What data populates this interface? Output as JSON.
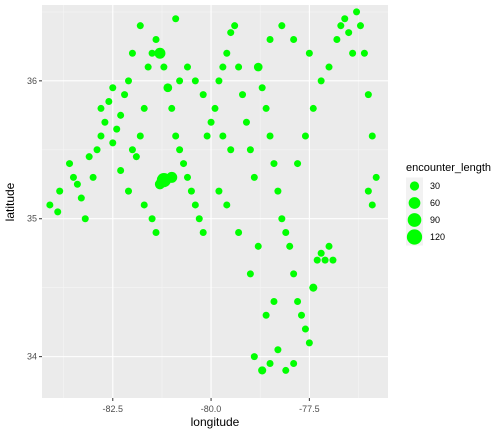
{
  "chart_data": {
    "type": "scatter",
    "title": "",
    "xlabel": "longitude",
    "ylabel": "latitude",
    "xlim": [
      -84.3,
      -75.5
    ],
    "ylim": [
      33.7,
      36.55
    ],
    "x_ticks": [
      -82.5,
      -80.0,
      -77.5
    ],
    "x_tick_labels": [
      "-82.5",
      "-80.0",
      "-77.5"
    ],
    "y_ticks": [
      34,
      35,
      36
    ],
    "y_tick_labels": [
      "34",
      "35",
      "36"
    ],
    "grid": true,
    "point_color": "#00FF00",
    "panel_background": "#EBEBEB",
    "legend": {
      "title": "encounter_length",
      "placement": "right",
      "entries": [
        {
          "label": "30",
          "value": 30
        },
        {
          "label": "60",
          "value": 60
        },
        {
          "label": "90",
          "value": 90
        },
        {
          "label": "120",
          "value": 120
        }
      ]
    },
    "size_variable": "encounter_length",
    "points": [
      [
        -84.1,
        35.1,
        12
      ],
      [
        -83.9,
        35.05,
        12
      ],
      [
        -83.85,
        35.2,
        12
      ],
      [
        -83.6,
        35.4,
        12
      ],
      [
        -83.5,
        35.3,
        12
      ],
      [
        -83.4,
        35.25,
        12
      ],
      [
        -83.3,
        35.15,
        12
      ],
      [
        -83.2,
        35.0,
        12
      ],
      [
        -83.0,
        35.3,
        12
      ],
      [
        -82.9,
        35.5,
        12
      ],
      [
        -82.8,
        35.6,
        12
      ],
      [
        -82.7,
        35.7,
        12
      ],
      [
        -82.6,
        35.85,
        12
      ],
      [
        -82.5,
        35.55,
        12
      ],
      [
        -82.4,
        35.65,
        12
      ],
      [
        -82.3,
        35.75,
        12
      ],
      [
        -82.2,
        35.9,
        12
      ],
      [
        -82.1,
        36.0,
        12
      ],
      [
        -82.0,
        35.5,
        12
      ],
      [
        -81.9,
        35.45,
        12
      ],
      [
        -81.8,
        35.6,
        12
      ],
      [
        -81.7,
        35.8,
        12
      ],
      [
        -81.6,
        36.1,
        12
      ],
      [
        -81.5,
        36.2,
        12
      ],
      [
        -81.4,
        36.3,
        12
      ],
      [
        -81.3,
        36.2,
        50
      ],
      [
        -81.2,
        36.1,
        12
      ],
      [
        -81.1,
        35.95,
        25
      ],
      [
        -81.0,
        35.8,
        12
      ],
      [
        -80.9,
        35.6,
        12
      ],
      [
        -80.8,
        35.5,
        12
      ],
      [
        -80.7,
        35.4,
        12
      ],
      [
        -80.6,
        35.3,
        12
      ],
      [
        -80.5,
        35.2,
        12
      ],
      [
        -80.4,
        35.1,
        12
      ],
      [
        -80.3,
        35.0,
        12
      ],
      [
        -80.2,
        34.9,
        12
      ],
      [
        -80.1,
        35.6,
        12
      ],
      [
        -80.0,
        35.7,
        12
      ],
      [
        -79.9,
        35.8,
        12
      ],
      [
        -79.8,
        36.0,
        12
      ],
      [
        -79.7,
        36.1,
        12
      ],
      [
        -79.6,
        36.2,
        12
      ],
      [
        -79.5,
        36.35,
        12
      ],
      [
        -79.4,
        36.4,
        12
      ],
      [
        -79.3,
        36.1,
        12
      ],
      [
        -79.2,
        35.9,
        12
      ],
      [
        -79.1,
        35.7,
        12
      ],
      [
        -79.0,
        35.5,
        12
      ],
      [
        -78.9,
        35.3,
        12
      ],
      [
        -78.8,
        36.1,
        25
      ],
      [
        -78.7,
        35.95,
        12
      ],
      [
        -78.6,
        35.8,
        12
      ],
      [
        -78.5,
        35.6,
        12
      ],
      [
        -78.4,
        35.4,
        12
      ],
      [
        -78.3,
        35.2,
        12
      ],
      [
        -78.2,
        35.0,
        12
      ],
      [
        -78.1,
        34.9,
        12
      ],
      [
        -78.0,
        34.8,
        12
      ],
      [
        -77.9,
        34.6,
        12
      ],
      [
        -77.8,
        34.4,
        12
      ],
      [
        -77.7,
        34.3,
        12
      ],
      [
        -77.6,
        34.2,
        12
      ],
      [
        -77.5,
        34.1,
        12
      ],
      [
        -77.4,
        34.5,
        20
      ],
      [
        -77.3,
        34.7,
        12
      ],
      [
        -77.2,
        34.75,
        12
      ],
      [
        -77.1,
        34.7,
        12
      ],
      [
        -77.0,
        34.8,
        12
      ],
      [
        -76.9,
        34.7,
        12
      ],
      [
        -76.8,
        36.3,
        12
      ],
      [
        -76.7,
        36.4,
        12
      ],
      [
        -76.6,
        36.45,
        12
      ],
      [
        -76.5,
        36.35,
        12
      ],
      [
        -76.4,
        36.2,
        12
      ],
      [
        -76.3,
        36.5,
        12
      ],
      [
        -76.2,
        36.4,
        12
      ],
      [
        -76.1,
        36.2,
        12
      ],
      [
        -76.0,
        35.9,
        12
      ],
      [
        -75.9,
        35.6,
        12
      ],
      [
        -75.8,
        35.3,
        12
      ],
      [
        -75.9,
        35.1,
        12
      ],
      [
        -76.0,
        35.2,
        12
      ],
      [
        -81.2,
        35.28,
        100
      ],
      [
        -81.0,
        35.3,
        50
      ],
      [
        -81.3,
        35.25,
        40
      ],
      [
        -82.3,
        35.35,
        12
      ],
      [
        -82.1,
        35.2,
        12
      ],
      [
        -81.7,
        35.1,
        12
      ],
      [
        -81.5,
        35.0,
        12
      ],
      [
        -81.4,
        34.9,
        12
      ],
      [
        -80.8,
        36.0,
        12
      ],
      [
        -80.6,
        36.1,
        12
      ],
      [
        -80.4,
        36.0,
        12
      ],
      [
        -80.2,
        35.9,
        12
      ],
      [
        -78.9,
        34.0,
        12
      ],
      [
        -78.7,
        33.9,
        20
      ],
      [
        -78.5,
        33.95,
        12
      ],
      [
        -78.3,
        34.05,
        12
      ],
      [
        -78.1,
        33.9,
        12
      ],
      [
        -77.9,
        33.95,
        12
      ],
      [
        -78.6,
        34.3,
        12
      ],
      [
        -78.4,
        34.4,
        12
      ],
      [
        -78.8,
        34.8,
        12
      ],
      [
        -79.0,
        34.6,
        12
      ],
      [
        -79.3,
        34.9,
        12
      ],
      [
        -79.6,
        35.1,
        12
      ],
      [
        -79.8,
        35.2,
        12
      ],
      [
        -79.5,
        35.5,
        12
      ],
      [
        -79.7,
        35.6,
        12
      ],
      [
        -77.8,
        35.4,
        12
      ],
      [
        -77.6,
        35.6,
        12
      ],
      [
        -77.4,
        35.8,
        12
      ],
      [
        -77.2,
        36.0,
        12
      ],
      [
        -77.0,
        36.1,
        12
      ],
      [
        -77.5,
        36.2,
        12
      ],
      [
        -77.9,
        36.3,
        12
      ],
      [
        -78.2,
        36.4,
        12
      ],
      [
        -78.5,
        36.3,
        12
      ],
      [
        -80.9,
        36.45,
        12
      ],
      [
        -81.8,
        36.4,
        12
      ],
      [
        -82.0,
        36.2,
        12
      ],
      [
        -82.5,
        35.95,
        12
      ],
      [
        -82.8,
        35.8,
        12
      ],
      [
        -83.1,
        35.45,
        12
      ]
    ]
  }
}
